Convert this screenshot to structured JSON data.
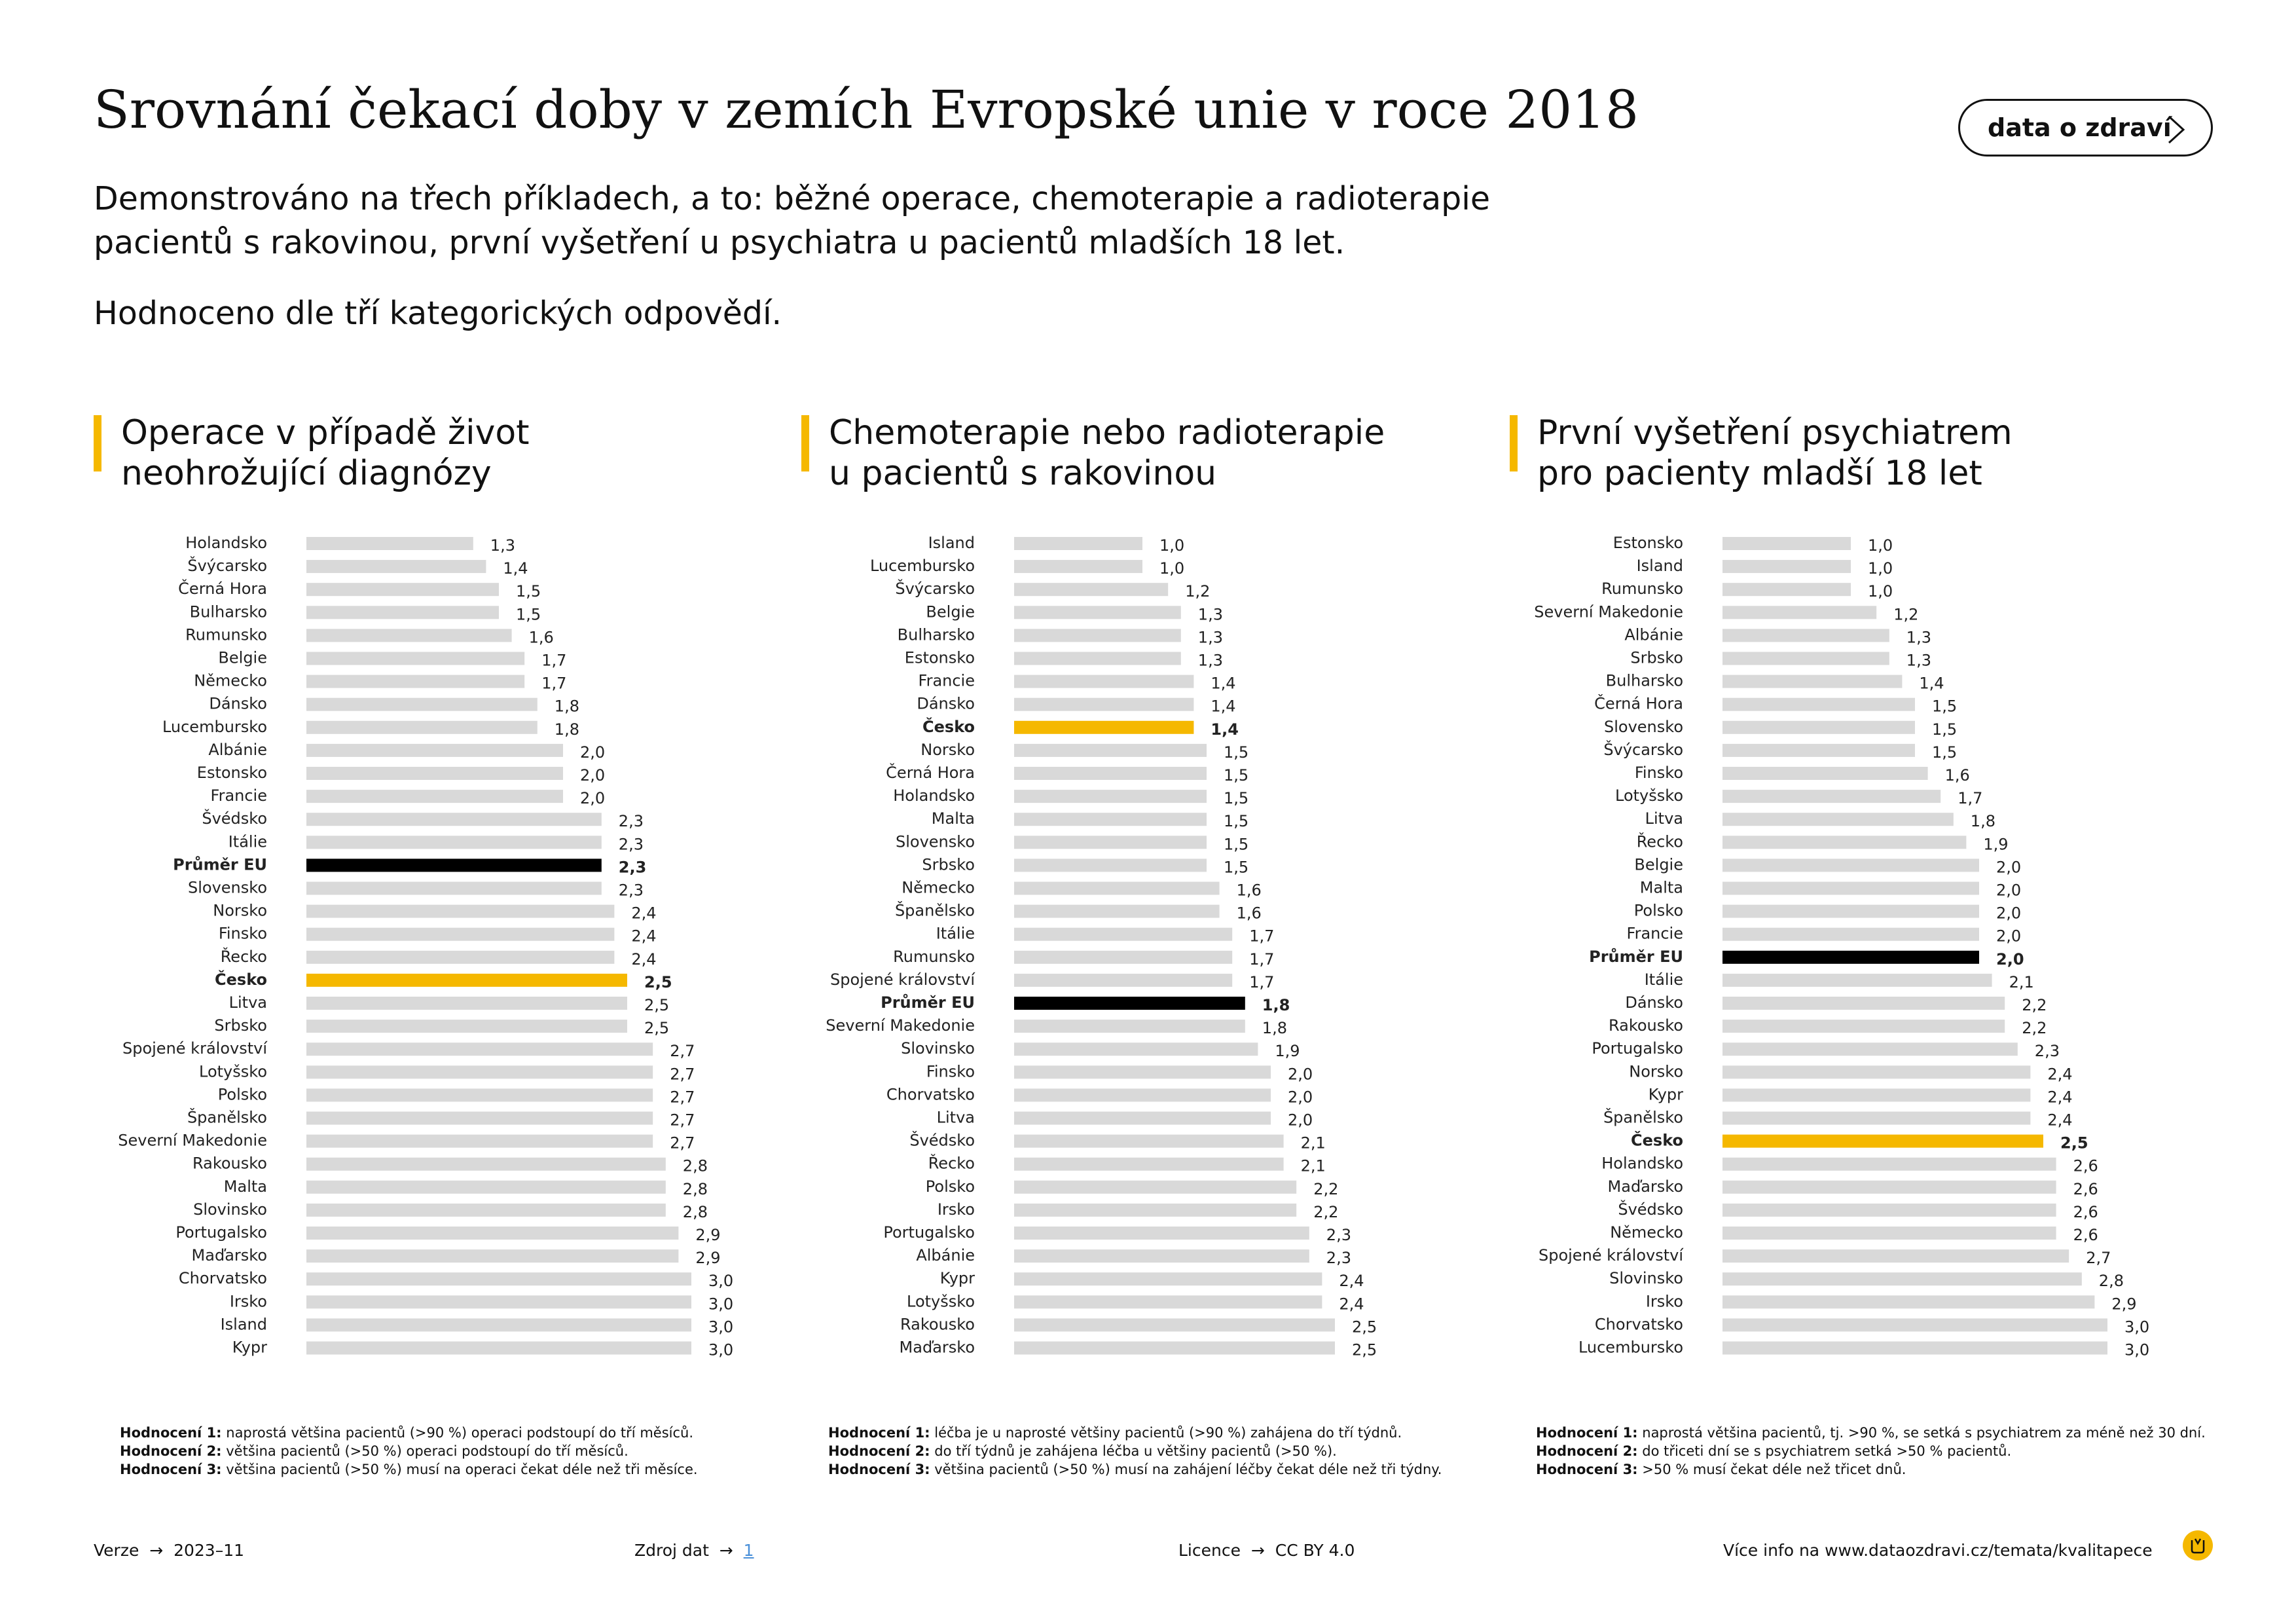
{
  "header": {
    "title": "Srovnání čekací doby v zemích Evropské unie v roce 2018",
    "subtitle_lines": [
      "Demonstrováno na třech příkladech, a to: běžné operace, chemoterapie a radioterapie",
      "pacientů s rakovinou, první vyšetření u psychiatra u pacientů mladších 18 let."
    ],
    "subtitle2": "Hodnoceno dle tří kategorických odpovědí.",
    "button_label": "data o zdraví"
  },
  "colors": {
    "bar": "#D9D9D9",
    "highlight": "#F5B800",
    "eu": "#000000"
  },
  "chart_data": [
    {
      "type": "bar",
      "orientation": "horizontal",
      "title_lines": [
        "Operace v případě život",
        "neohrožující diagnózy"
      ],
      "categories": [
        "Holandsko",
        "Švýcarsko",
        "Černá Hora",
        "Bulharsko",
        "Rumunsko",
        "Belgie",
        "Německo",
        "Dánsko",
        "Lucembursko",
        "Albánie",
        "Estonsko",
        "Francie",
        "Švédsko",
        "Itálie",
        "Průměr EU",
        "Slovensko",
        "Norsko",
        "Finsko",
        "Řecko",
        "Česko",
        "Litva",
        "Srbsko",
        "Spojené království",
        "Lotyšsko",
        "Polsko",
        "Španělsko",
        "Severní Makedonie",
        "Rakousko",
        "Malta",
        "Slovinsko",
        "Portugalsko",
        "Maďarsko",
        "Chorvatsko",
        "Irsko",
        "Island",
        "Kypr"
      ],
      "values": [
        1.3,
        1.4,
        1.5,
        1.5,
        1.6,
        1.7,
        1.7,
        1.8,
        1.8,
        2.0,
        2.0,
        2.0,
        2.3,
        2.3,
        2.3,
        2.3,
        2.4,
        2.4,
        2.4,
        2.5,
        2.5,
        2.5,
        2.7,
        2.7,
        2.7,
        2.7,
        2.7,
        2.8,
        2.8,
        2.8,
        2.9,
        2.9,
        3.0,
        3.0,
        3.0,
        3.0
      ],
      "value_labels": [
        "1,3",
        "1,4",
        "1,5",
        "1,5",
        "1,6",
        "1,7",
        "1,7",
        "1,8",
        "1,8",
        "2,0",
        "2,0",
        "2,0",
        "2,3",
        "2,3",
        "2,3",
        "2,3",
        "2,4",
        "2,4",
        "2,4",
        "2,5",
        "2,5",
        "2,5",
        "2,7",
        "2,7",
        "2,7",
        "2,7",
        "2,7",
        "2,8",
        "2,8",
        "2,8",
        "2,9",
        "2,9",
        "3,0",
        "3,0",
        "3,0",
        "3,0"
      ],
      "highlight": "Česko",
      "eu_average": "Průměr EU",
      "xlim": [
        0,
        3.0
      ],
      "notes": [
        {
          "label": "Hodnocení 1:",
          "text": " naprostá většina pacientů (>90 %) operaci podstoupí do tří měsíců."
        },
        {
          "label": "Hodnocení 2:",
          "text": " většina pacientů (>50 %) operaci podstoupí do tří měsíců."
        },
        {
          "label": "Hodnocení 3:",
          "text": " většina pacientů (>50 %) musí na operaci čekat déle než tři měsíce."
        }
      ]
    },
    {
      "type": "bar",
      "orientation": "horizontal",
      "title_lines": [
        "Chemoterapie nebo radioterapie",
        "u pacientů s rakovinou"
      ],
      "categories": [
        "Island",
        "Lucembursko",
        "Švýcarsko",
        "Belgie",
        "Bulharsko",
        "Estonsko",
        "Francie",
        "Dánsko",
        "Česko",
        "Norsko",
        "Černá Hora",
        "Holandsko",
        "Malta",
        "Slovensko",
        "Srbsko",
        "Německo",
        "Španělsko",
        "Itálie",
        "Rumunsko",
        "Spojené království",
        "Průměr EU",
        "Severní Makedonie",
        "Slovinsko",
        "Finsko",
        "Chorvatsko",
        "Litva",
        "Švédsko",
        "Řecko",
        "Polsko",
        "Irsko",
        "Portugalsko",
        "Albánie",
        "Kypr",
        "Lotyšsko",
        "Rakousko",
        "Maďarsko"
      ],
      "values": [
        1.0,
        1.0,
        1.2,
        1.3,
        1.3,
        1.3,
        1.4,
        1.4,
        1.4,
        1.5,
        1.5,
        1.5,
        1.5,
        1.5,
        1.5,
        1.6,
        1.6,
        1.7,
        1.7,
        1.7,
        1.8,
        1.8,
        1.9,
        2.0,
        2.0,
        2.0,
        2.1,
        2.1,
        2.2,
        2.2,
        2.3,
        2.3,
        2.4,
        2.4,
        2.5,
        2.5
      ],
      "value_labels": [
        "1,0",
        "1,0",
        "1,2",
        "1,3",
        "1,3",
        "1,3",
        "1,4",
        "1,4",
        "1,4",
        "1,5",
        "1,5",
        "1,5",
        "1,5",
        "1,5",
        "1,5",
        "1,6",
        "1,6",
        "1,7",
        "1,7",
        "1,7",
        "1,8",
        "1,8",
        "1,9",
        "2,0",
        "2,0",
        "2,0",
        "2,1",
        "2,1",
        "2,2",
        "2,2",
        "2,3",
        "2,3",
        "2,4",
        "2,4",
        "2,5",
        "2,5"
      ],
      "highlight": "Česko",
      "eu_average": "Průměr EU",
      "xlim": [
        0,
        3.0
      ],
      "notes": [
        {
          "label": "Hodnocení 1:",
          "text": " léčba je u naprosté většiny pacientů (>90 %) zahájena do tří týdnů."
        },
        {
          "label": "Hodnocení 2:",
          "text": " do tří týdnů je zahájena léčba u většiny pacientů (>50 %)."
        },
        {
          "label": "Hodnocení 3:",
          "text": " většina pacientů (>50 %) musí na zahájení léčby čekat déle než tři týdny."
        }
      ]
    },
    {
      "type": "bar",
      "orientation": "horizontal",
      "title_lines": [
        "První vyšetření psychiatrem",
        "pro pacienty mladší 18 let"
      ],
      "categories": [
        "Estonsko",
        "Island",
        "Rumunsko",
        "Severní Makedonie",
        "Albánie",
        "Srbsko",
        "Bulharsko",
        "Černá Hora",
        "Slovensko",
        "Švýcarsko",
        "Finsko",
        "Lotyšsko",
        "Litva",
        "Řecko",
        "Belgie",
        "Malta",
        "Polsko",
        "Francie",
        "Průměr EU",
        "Itálie",
        "Dánsko",
        "Rakousko",
        "Portugalsko",
        "Norsko",
        "Kypr",
        "Španělsko",
        "Česko",
        "Holandsko",
        "Maďarsko",
        "Švédsko",
        "Německo",
        "Spojené království",
        "Slovinsko",
        "Irsko",
        "Chorvatsko",
        "Lucembursko"
      ],
      "values": [
        1.0,
        1.0,
        1.0,
        1.2,
        1.3,
        1.3,
        1.4,
        1.5,
        1.5,
        1.5,
        1.6,
        1.7,
        1.8,
        1.9,
        2.0,
        2.0,
        2.0,
        2.0,
        2.0,
        2.1,
        2.2,
        2.2,
        2.3,
        2.4,
        2.4,
        2.4,
        2.5,
        2.6,
        2.6,
        2.6,
        2.6,
        2.7,
        2.8,
        2.9,
        3.0,
        3.0
      ],
      "value_labels": [
        "1,0",
        "1,0",
        "1,0",
        "1,2",
        "1,3",
        "1,3",
        "1,4",
        "1,5",
        "1,5",
        "1,5",
        "1,6",
        "1,7",
        "1,8",
        "1,9",
        "2,0",
        "2,0",
        "2,0",
        "2,0",
        "2,0",
        "2,1",
        "2,2",
        "2,2",
        "2,3",
        "2,4",
        "2,4",
        "2,4",
        "2,5",
        "2,6",
        "2,6",
        "2,6",
        "2,6",
        "2,7",
        "2,8",
        "2,9",
        "3,0",
        "3,0"
      ],
      "highlight": "Česko",
      "eu_average": "Průměr EU",
      "xlim": [
        0,
        3.0
      ],
      "notes": [
        {
          "label": "Hodnocení 1:",
          "text": " naprostá většina pacientů, tj. >90 %, se setká s psychiatrem za méně než 30 dní."
        },
        {
          "label": "Hodnocení 2:",
          "text": " do třiceti dní se s psychiatrem setká >50 % pacientů."
        },
        {
          "label": "Hodnocení 3:",
          "text": " >50 % musí čekat déle než třicet dnů."
        }
      ]
    }
  ],
  "footer": {
    "version_label": "Verze",
    "version_value": "2023–11",
    "source_label": "Zdroj dat",
    "source_link": "1",
    "license_label": "Licence",
    "license_value": "CC BY 4.0",
    "info": "Více info na www.dataozdravi.cz/temata/kvalitapece"
  }
}
